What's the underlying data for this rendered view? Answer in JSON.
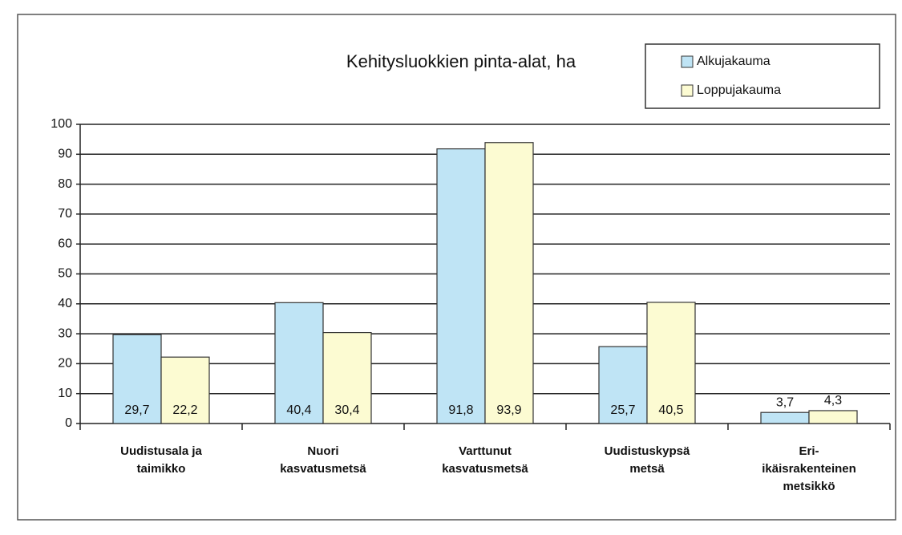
{
  "chart_data": {
    "type": "bar",
    "title": "Kehitysluokkien pinta-alat, ha",
    "categories": [
      [
        "Uudistusala ja",
        "taimikko"
      ],
      [
        "Nuori",
        "kasvatusmetsä"
      ],
      [
        "Varttunut",
        "kasvatusmetsä"
      ],
      [
        "Uudistuskypsä",
        "metsä"
      ],
      [
        "Eri-",
        "ikäisrakenteinen",
        "metsikkö"
      ]
    ],
    "series": [
      {
        "name": "Alkujakauma",
        "color": "#bfe4f5",
        "values": [
          29.7,
          40.4,
          91.8,
          25.7,
          3.7
        ],
        "value_labels": [
          "29,7",
          "40,4",
          "91,8",
          "25,7",
          "3,7"
        ]
      },
      {
        "name": "Loppujakauma",
        "color": "#fcfbd2",
        "values": [
          22.2,
          30.4,
          93.9,
          40.5,
          4.3
        ],
        "value_labels": [
          "22,2",
          "30,4",
          "93,9",
          "40,5",
          "4,3"
        ]
      }
    ],
    "ylim": [
      0,
      100
    ],
    "yticks": [
      0,
      10,
      20,
      30,
      40,
      50,
      60,
      70,
      80,
      90,
      100
    ],
    "grid": true,
    "legend": "top-right"
  }
}
